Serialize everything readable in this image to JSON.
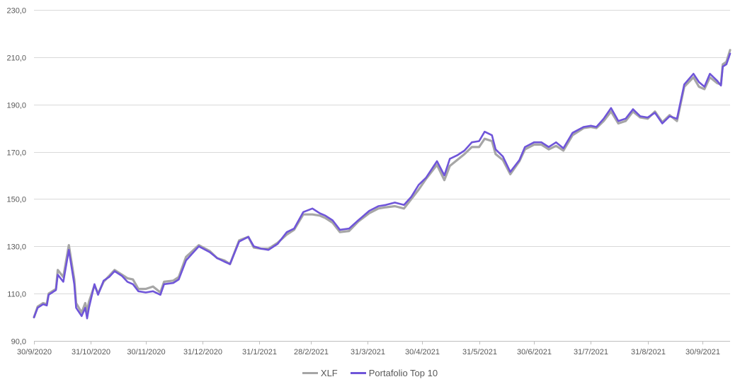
{
  "chart_data": {
    "type": "line",
    "title": "",
    "xlabel": "",
    "ylabel": "",
    "ylim": [
      90,
      230
    ],
    "yticks": [
      "90,0",
      "110,0",
      "130,0",
      "150,0",
      "170,0",
      "190,0",
      "210,0",
      "230,0"
    ],
    "xticks": [
      "30/9/2020",
      "31/10/2020",
      "30/11/2020",
      "31/12/2020",
      "31/1/2021",
      "28/2/2021",
      "31/3/2021",
      "30/4/2021",
      "31/5/2021",
      "30/6/2021",
      "31/7/2021",
      "31/8/2021",
      "30/9/2021"
    ],
    "xrange": [
      "2020-09-30",
      "2021-10-15"
    ],
    "grid": "horizontal",
    "legend_position": "bottom",
    "series": [
      {
        "name": "XLF",
        "color": "#a6a6a6",
        "points": [
          [
            "2020-09-30",
            100.0
          ],
          [
            "2020-10-02",
            104.5
          ],
          [
            "2020-10-05",
            106.0
          ],
          [
            "2020-10-07",
            105.5
          ],
          [
            "2020-10-08",
            110.0
          ],
          [
            "2020-10-12",
            112.0
          ],
          [
            "2020-10-13",
            120.0
          ],
          [
            "2020-10-16",
            117.0
          ],
          [
            "2020-10-19",
            130.5
          ],
          [
            "2020-10-22",
            116.0
          ],
          [
            "2020-10-23",
            106.0
          ],
          [
            "2020-10-26",
            102.0
          ],
          [
            "2020-10-28",
            106.0
          ],
          [
            "2020-10-29",
            102.5
          ],
          [
            "2020-10-30",
            106.5
          ],
          [
            "2020-11-02",
            113.5
          ],
          [
            "2020-11-04",
            110.0
          ],
          [
            "2020-11-07",
            115.0
          ],
          [
            "2020-11-10",
            117.5
          ],
          [
            "2020-11-13",
            120.0
          ],
          [
            "2020-11-17",
            118.0
          ],
          [
            "2020-11-20",
            116.5
          ],
          [
            "2020-11-23",
            116.0
          ],
          [
            "2020-11-26",
            112.0
          ],
          [
            "2020-11-30",
            112.0
          ],
          [
            "2020-12-04",
            113.0
          ],
          [
            "2020-12-08",
            110.5
          ],
          [
            "2020-12-10",
            115.0
          ],
          [
            "2020-12-15",
            115.5
          ],
          [
            "2020-12-18",
            117.0
          ],
          [
            "2020-12-22",
            125.5
          ],
          [
            "2020-12-29",
            130.5
          ],
          [
            "2021-01-04",
            128.0
          ],
          [
            "2021-01-08",
            125.0
          ],
          [
            "2021-01-12",
            124.0
          ],
          [
            "2021-01-15",
            122.5
          ],
          [
            "2021-01-20",
            132.5
          ],
          [
            "2021-01-25",
            134.0
          ],
          [
            "2021-01-28",
            129.5
          ],
          [
            "2021-02-01",
            129.0
          ],
          [
            "2021-02-05",
            129.0
          ],
          [
            "2021-02-10",
            131.5
          ],
          [
            "2021-02-15",
            135.0
          ],
          [
            "2021-02-19",
            137.0
          ],
          [
            "2021-02-24",
            143.5
          ],
          [
            "2021-03-01",
            143.5
          ],
          [
            "2021-03-05",
            143.0
          ],
          [
            "2021-03-08",
            142.0
          ],
          [
            "2021-03-12",
            140.0
          ],
          [
            "2021-03-16",
            136.0
          ],
          [
            "2021-03-21",
            136.5
          ],
          [
            "2021-03-26",
            140.5
          ],
          [
            "2021-04-01",
            144.0
          ],
          [
            "2021-04-06",
            146.0
          ],
          [
            "2021-04-10",
            146.5
          ],
          [
            "2021-04-15",
            147.0
          ],
          [
            "2021-04-20",
            146.0
          ],
          [
            "2021-04-24",
            150.0
          ],
          [
            "2021-04-28",
            154.0
          ],
          [
            "2021-05-02",
            158.5
          ],
          [
            "2021-05-08",
            164.5
          ],
          [
            "2021-05-12",
            158.0
          ],
          [
            "2021-05-15",
            164.0
          ],
          [
            "2021-05-19",
            166.5
          ],
          [
            "2021-05-23",
            169.0
          ],
          [
            "2021-05-27",
            172.0
          ],
          [
            "2021-05-31",
            172.0
          ],
          [
            "2021-06-03",
            175.5
          ],
          [
            "2021-06-07",
            174.5
          ],
          [
            "2021-06-09",
            169.0
          ],
          [
            "2021-06-13",
            166.5
          ],
          [
            "2021-06-17",
            160.5
          ],
          [
            "2021-06-22",
            166.0
          ],
          [
            "2021-06-25",
            171.0
          ],
          [
            "2021-06-30",
            173.0
          ],
          [
            "2021-07-04",
            173.0
          ],
          [
            "2021-07-08",
            171.0
          ],
          [
            "2021-07-12",
            172.5
          ],
          [
            "2021-07-16",
            170.5
          ],
          [
            "2021-07-21",
            177.0
          ],
          [
            "2021-07-27",
            180.0
          ],
          [
            "2021-07-31",
            180.5
          ],
          [
            "2021-08-03",
            180.0
          ],
          [
            "2021-08-07",
            183.0
          ],
          [
            "2021-08-11",
            187.0
          ],
          [
            "2021-08-15",
            182.0
          ],
          [
            "2021-08-19",
            183.0
          ],
          [
            "2021-08-23",
            187.0
          ],
          [
            "2021-08-27",
            184.5
          ],
          [
            "2021-08-31",
            184.0
          ],
          [
            "2021-09-04",
            187.0
          ],
          [
            "2021-09-08",
            182.5
          ],
          [
            "2021-09-12",
            185.5
          ],
          [
            "2021-09-16",
            183.0
          ],
          [
            "2021-09-20",
            197.5
          ],
          [
            "2021-09-25",
            201.5
          ],
          [
            "2021-09-28",
            197.5
          ],
          [
            "2021-10-01",
            196.5
          ],
          [
            "2021-10-04",
            201.5
          ],
          [
            "2021-10-08",
            199.0
          ],
          [
            "2021-10-10",
            198.5
          ],
          [
            "2021-10-11",
            207.0
          ],
          [
            "2021-10-13",
            208.0
          ],
          [
            "2021-10-15",
            213.0
          ]
        ]
      },
      {
        "name": "Portafolio Top 10",
        "color": "#6f55d9",
        "points": [
          [
            "2020-09-30",
            100.0
          ],
          [
            "2020-10-02",
            104.0
          ],
          [
            "2020-10-05",
            105.5
          ],
          [
            "2020-10-07",
            105.0
          ],
          [
            "2020-10-08",
            109.5
          ],
          [
            "2020-10-12",
            111.5
          ],
          [
            "2020-10-13",
            118.0
          ],
          [
            "2020-10-16",
            115.0
          ],
          [
            "2020-10-19",
            128.5
          ],
          [
            "2020-10-22",
            114.0
          ],
          [
            "2020-10-23",
            104.0
          ],
          [
            "2020-10-26",
            100.5
          ],
          [
            "2020-10-28",
            104.0
          ],
          [
            "2020-10-29",
            99.5
          ],
          [
            "2020-10-30",
            104.0
          ],
          [
            "2020-11-02",
            114.0
          ],
          [
            "2020-11-04",
            109.5
          ],
          [
            "2020-11-07",
            115.5
          ],
          [
            "2020-11-10",
            117.0
          ],
          [
            "2020-11-13",
            119.5
          ],
          [
            "2020-11-17",
            117.5
          ],
          [
            "2020-11-20",
            115.0
          ],
          [
            "2020-11-23",
            114.0
          ],
          [
            "2020-11-26",
            111.0
          ],
          [
            "2020-11-30",
            110.5
          ],
          [
            "2020-12-04",
            111.0
          ],
          [
            "2020-12-08",
            109.5
          ],
          [
            "2020-12-10",
            114.0
          ],
          [
            "2020-12-15",
            114.5
          ],
          [
            "2020-12-18",
            116.0
          ],
          [
            "2020-12-22",
            124.0
          ],
          [
            "2020-12-29",
            130.0
          ],
          [
            "2021-01-04",
            127.5
          ],
          [
            "2021-01-08",
            125.0
          ],
          [
            "2021-01-12",
            123.5
          ],
          [
            "2021-01-15",
            122.5
          ],
          [
            "2021-01-20",
            132.0
          ],
          [
            "2021-01-25",
            134.0
          ],
          [
            "2021-01-28",
            130.0
          ],
          [
            "2021-02-01",
            129.0
          ],
          [
            "2021-02-05",
            128.5
          ],
          [
            "2021-02-10",
            131.0
          ],
          [
            "2021-02-15",
            136.0
          ],
          [
            "2021-02-19",
            137.5
          ],
          [
            "2021-02-24",
            144.5
          ],
          [
            "2021-03-01",
            146.0
          ],
          [
            "2021-03-05",
            144.0
          ],
          [
            "2021-03-08",
            143.0
          ],
          [
            "2021-03-12",
            141.0
          ],
          [
            "2021-03-16",
            137.0
          ],
          [
            "2021-03-21",
            137.5
          ],
          [
            "2021-03-26",
            141.0
          ],
          [
            "2021-04-01",
            145.0
          ],
          [
            "2021-04-06",
            147.0
          ],
          [
            "2021-04-10",
            147.5
          ],
          [
            "2021-04-15",
            148.5
          ],
          [
            "2021-04-20",
            147.5
          ],
          [
            "2021-04-24",
            151.0
          ],
          [
            "2021-04-28",
            156.0
          ],
          [
            "2021-05-02",
            159.0
          ],
          [
            "2021-05-08",
            166.0
          ],
          [
            "2021-05-12",
            160.0
          ],
          [
            "2021-05-15",
            167.0
          ],
          [
            "2021-05-19",
            168.5
          ],
          [
            "2021-05-23",
            170.5
          ],
          [
            "2021-05-27",
            174.0
          ],
          [
            "2021-05-31",
            174.5
          ],
          [
            "2021-06-03",
            178.5
          ],
          [
            "2021-06-07",
            177.0
          ],
          [
            "2021-06-09",
            171.0
          ],
          [
            "2021-06-13",
            168.0
          ],
          [
            "2021-06-17",
            161.5
          ],
          [
            "2021-06-22",
            166.5
          ],
          [
            "2021-06-25",
            172.0
          ],
          [
            "2021-06-30",
            174.0
          ],
          [
            "2021-07-04",
            174.0
          ],
          [
            "2021-07-08",
            172.0
          ],
          [
            "2021-07-12",
            174.0
          ],
          [
            "2021-07-16",
            171.5
          ],
          [
            "2021-07-21",
            178.0
          ],
          [
            "2021-07-27",
            180.5
          ],
          [
            "2021-07-31",
            181.0
          ],
          [
            "2021-08-03",
            180.5
          ],
          [
            "2021-08-07",
            184.0
          ],
          [
            "2021-08-11",
            188.5
          ],
          [
            "2021-08-15",
            183.0
          ],
          [
            "2021-08-19",
            184.0
          ],
          [
            "2021-08-23",
            188.0
          ],
          [
            "2021-08-27",
            185.0
          ],
          [
            "2021-08-31",
            184.5
          ],
          [
            "2021-09-04",
            186.5
          ],
          [
            "2021-09-08",
            182.0
          ],
          [
            "2021-09-12",
            185.0
          ],
          [
            "2021-09-16",
            184.0
          ],
          [
            "2021-09-20",
            198.5
          ],
          [
            "2021-09-25",
            203.0
          ],
          [
            "2021-09-28",
            199.5
          ],
          [
            "2021-10-01",
            197.5
          ],
          [
            "2021-10-04",
            203.0
          ],
          [
            "2021-10-08",
            200.0
          ],
          [
            "2021-10-10",
            198.0
          ],
          [
            "2021-10-11",
            206.0
          ],
          [
            "2021-10-13",
            207.0
          ],
          [
            "2021-10-15",
            211.5
          ]
        ]
      }
    ]
  }
}
